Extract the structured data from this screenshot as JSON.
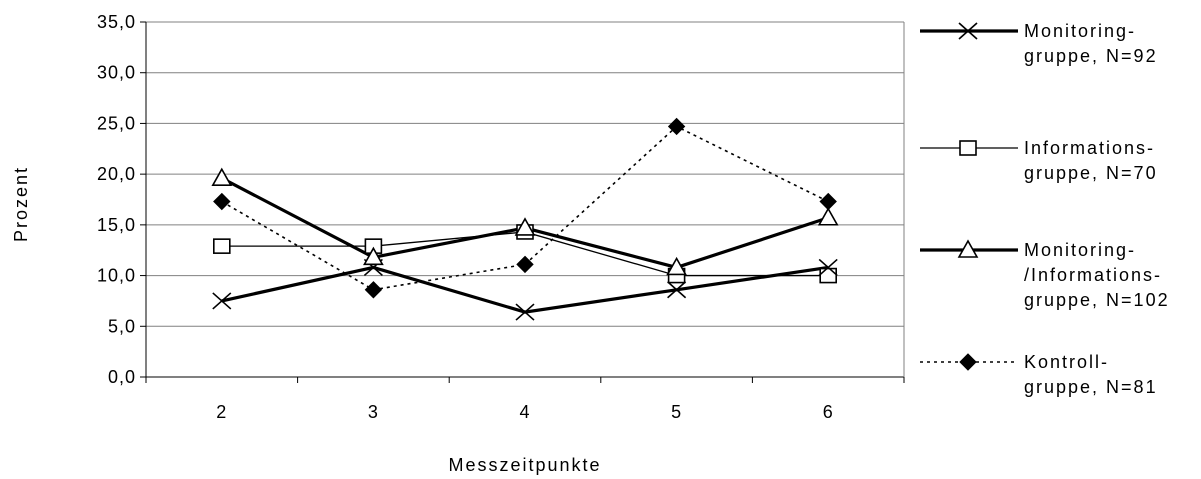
{
  "chart_data": {
    "type": "line",
    "title": "",
    "xlabel": "Messzeitpunkte",
    "ylabel": "Prozent",
    "x": [
      "2",
      "3",
      "4",
      "5",
      "6"
    ],
    "ylim": [
      0,
      35
    ],
    "yticks": [
      "0,0",
      "5,0",
      "10,0",
      "15,0",
      "20,0",
      "25,0",
      "30,0",
      "35,0"
    ],
    "grid": "horizontal",
    "legend_position": "right",
    "series": [
      {
        "name_lines": [
          "Monitoring-",
          "gruppe, N=92"
        ],
        "values": [
          7.5,
          10.8,
          6.4,
          8.6,
          10.8
        ],
        "marker": "x",
        "line": "solid-thick",
        "color": "#000000"
      },
      {
        "name_lines": [
          "Informations-",
          "gruppe, N=70"
        ],
        "values": [
          12.9,
          12.9,
          14.3,
          10.0,
          10.0
        ],
        "marker": "square-open",
        "line": "solid-thin",
        "color": "#000000"
      },
      {
        "name_lines": [
          "Monitoring-",
          "/Informations-",
          "gruppe, N=102"
        ],
        "values": [
          19.6,
          11.8,
          14.7,
          10.8,
          15.7
        ],
        "marker": "triangle-open",
        "line": "solid-thick",
        "color": "#000000"
      },
      {
        "name_lines": [
          "Kontroll-",
          "gruppe, N=81"
        ],
        "values": [
          17.3,
          8.6,
          11.1,
          24.7,
          17.3
        ],
        "marker": "diamond-filled",
        "line": "dotted",
        "color": "#000000"
      }
    ]
  }
}
